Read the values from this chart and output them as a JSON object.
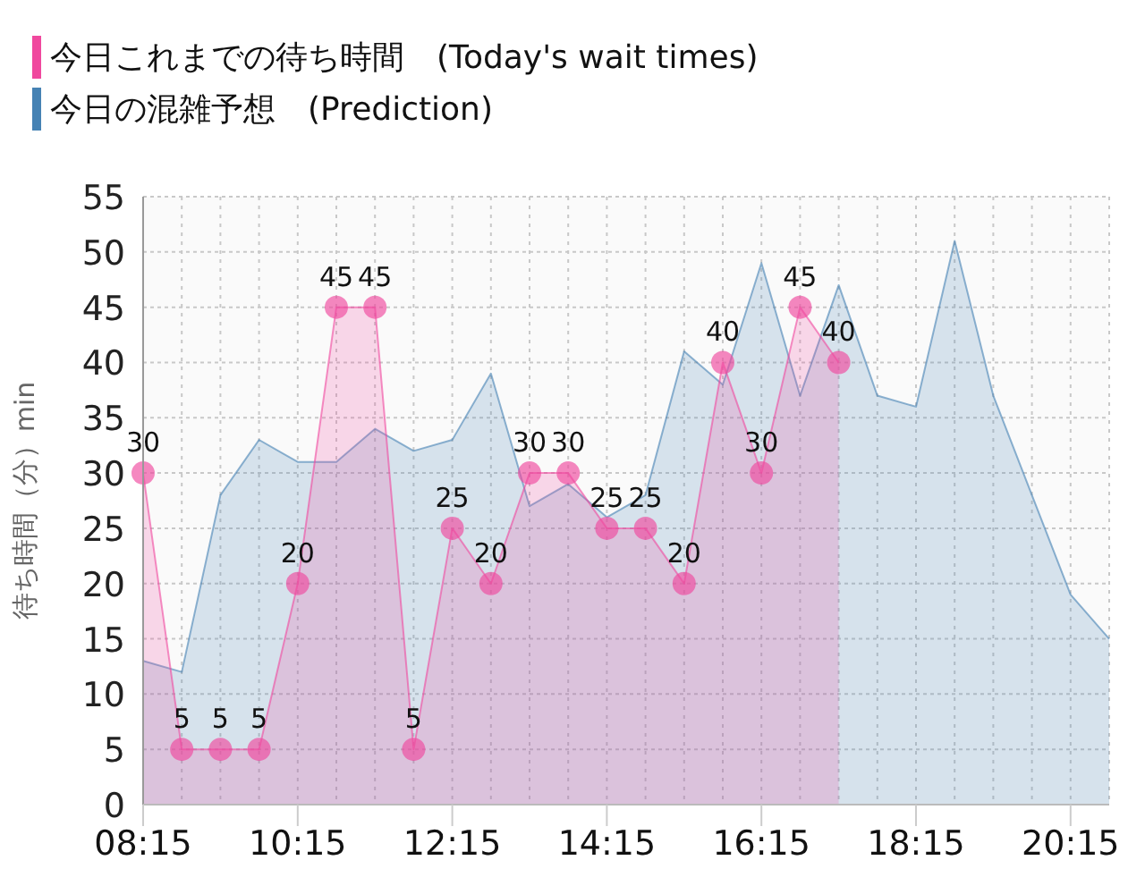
{
  "chart_data": {
    "type": "area",
    "ylabel": "待ち時間（分）min",
    "x": [
      8.25,
      8.75,
      9.25,
      9.75,
      10.25,
      10.75,
      11.25,
      11.75,
      12.25,
      12.75,
      13.25,
      13.75,
      14.25,
      14.75,
      15.25,
      15.75,
      16.25,
      16.75,
      17.25,
      17.75,
      18.25,
      18.75,
      19.25,
      19.75,
      20.25,
      20.75
    ],
    "series": [
      {
        "name": "今日の混雑予想　(Prediction)",
        "color": "#4682b4",
        "values": [
          13,
          12,
          28,
          33,
          31,
          31,
          34,
          32,
          33,
          39,
          27,
          29,
          26,
          28,
          41,
          38,
          49,
          37,
          47,
          37,
          36,
          51,
          37,
          28,
          19,
          15
        ]
      },
      {
        "name": "今日これまでの待ち時間　(Today's wait times)",
        "color": "#f0489e",
        "marker": "circle",
        "data_labels": true,
        "x": [
          8.25,
          8.75,
          9.25,
          9.75,
          10.25,
          10.75,
          11.25,
          11.75,
          12.25,
          12.75,
          13.25,
          13.75,
          14.25,
          14.75,
          15.25,
          15.75,
          16.25,
          16.75,
          17.25
        ],
        "values": [
          30,
          5,
          5,
          5,
          20,
          45,
          45,
          5,
          25,
          20,
          30,
          30,
          25,
          25,
          20,
          40,
          30,
          45,
          40
        ]
      }
    ],
    "xlim": [
      8.25,
      20.75
    ],
    "xticks": [
      {
        "value": 8.25,
        "label": "08:15"
      },
      {
        "value": 10.25,
        "label": "10:15"
      },
      {
        "value": 12.25,
        "label": "12:15"
      },
      {
        "value": 14.25,
        "label": "14:15"
      },
      {
        "value": 16.25,
        "label": "16:15"
      },
      {
        "value": 18.25,
        "label": "18:15"
      },
      {
        "value": 20.25,
        "label": "20:15"
      }
    ],
    "ylim": [
      0,
      55
    ],
    "yticks": [
      0,
      5,
      10,
      15,
      20,
      25,
      30,
      35,
      40,
      45,
      50,
      55
    ],
    "grid": true,
    "legend": "top left"
  }
}
